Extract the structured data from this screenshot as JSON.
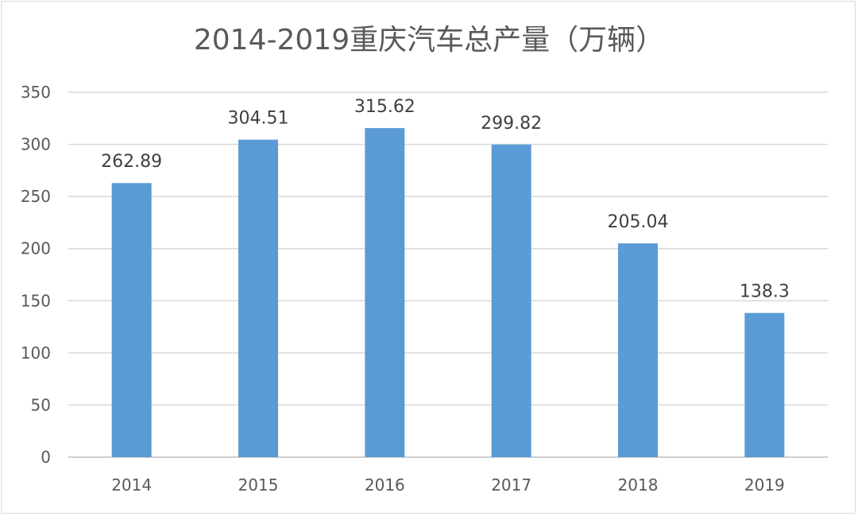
{
  "chart_data": {
    "type": "bar",
    "title": "2014-2019重庆汽车总产量（万辆）",
    "categories": [
      "2014",
      "2015",
      "2016",
      "2017",
      "2018",
      "2019"
    ],
    "values": [
      262.89,
      304.51,
      315.62,
      299.82,
      205.04,
      138.3
    ],
    "data_labels": [
      "262.89",
      "304.51",
      "315.62",
      "299.82",
      "205.04",
      "138.3"
    ],
    "ylim": [
      0,
      350
    ],
    "yticks": [
      0,
      50,
      100,
      150,
      200,
      250,
      300,
      350
    ],
    "xlabel": "",
    "ylabel": "",
    "grid": true,
    "legend": "none",
    "bar_color": "#5b9bd5"
  }
}
